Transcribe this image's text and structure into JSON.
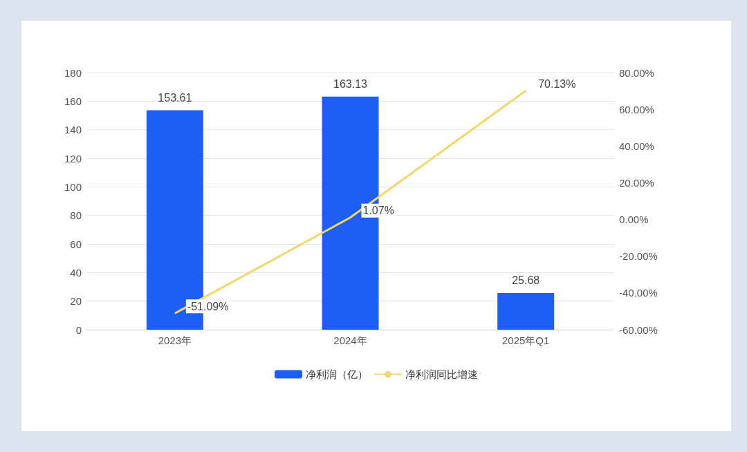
{
  "chart_data": {
    "type": "bar",
    "categories": [
      "2023年",
      "2024年",
      "2025年Q1"
    ],
    "series": [
      {
        "name": "净利润（亿）",
        "color": "#1f5ef5",
        "values": [
          153.61,
          163.13,
          25.68
        ],
        "value_labels": [
          "153.61",
          "163.13",
          "25.68"
        ]
      },
      {
        "name": "净利润同比增速",
        "type": "line",
        "axis": "y2",
        "color": "#f5d769",
        "values": [
          -51.09,
          1.07,
          70.13
        ],
        "value_labels": [
          "-51.09%",
          "1.07%",
          "70.13%"
        ]
      }
    ],
    "ylim": [
      0,
      180
    ],
    "yticks": [
      0,
      20,
      40,
      60,
      80,
      100,
      120,
      140,
      160,
      180
    ],
    "y2lim": [
      -60,
      80
    ],
    "y2ticks": [
      {
        "value": -60,
        "label": "-60.00%"
      },
      {
        "value": -40,
        "label": "-40.00%"
      },
      {
        "value": -20,
        "label": "-20.00%"
      },
      {
        "value": 0,
        "label": "0.00%"
      },
      {
        "value": 20,
        "label": "20.00%"
      },
      {
        "value": 40,
        "label": "40.00%"
      },
      {
        "value": 60,
        "label": "60.00%"
      },
      {
        "value": 80,
        "label": "80.00%"
      }
    ],
    "grid": "y",
    "legend": "bottom",
    "marker": "none",
    "line_style": "solid"
  }
}
